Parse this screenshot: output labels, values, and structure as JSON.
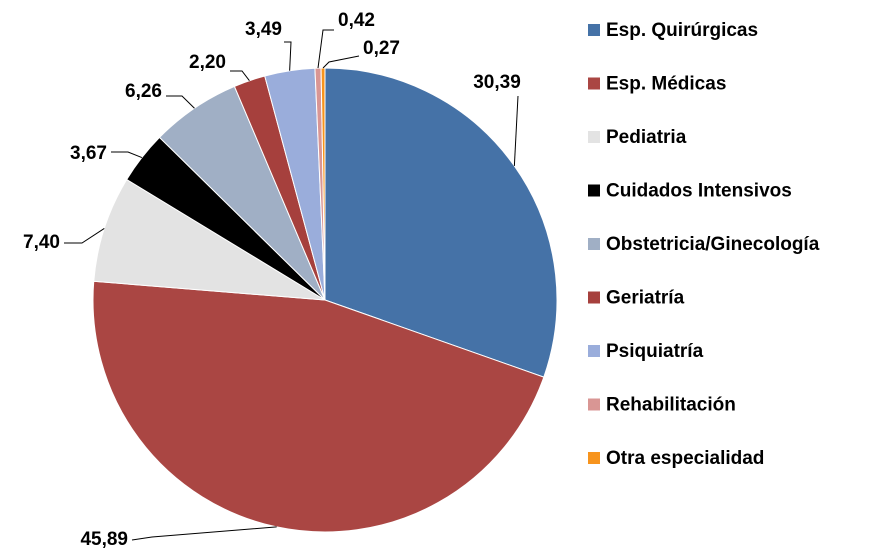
{
  "chart_data": {
    "type": "pie",
    "categories": [
      "Esp. Quirúrgicas",
      "Esp. Médicas",
      "Pediatria",
      "Cuidados Intensivos",
      "Obstetricia/Ginecología",
      "Geriatría",
      "Psiquiatría",
      "Rehabilitación",
      "Otra especialidad"
    ],
    "values": [
      30.39,
      45.89,
      7.4,
      3.67,
      6.26,
      2.2,
      3.49,
      0.42,
      0.27
    ],
    "value_labels": [
      "30,39",
      "45,89",
      "7,40",
      "3,67",
      "6,26",
      "2,20",
      "3,49",
      "0,42",
      "0,27"
    ],
    "colors": [
      "#4572a7",
      "#aa4643",
      "#e3e3e3",
      "#000000",
      "#a0afc5",
      "#a6403d",
      "#9aaddb",
      "#d99694",
      "#f7941d"
    ],
    "legend": "right"
  }
}
